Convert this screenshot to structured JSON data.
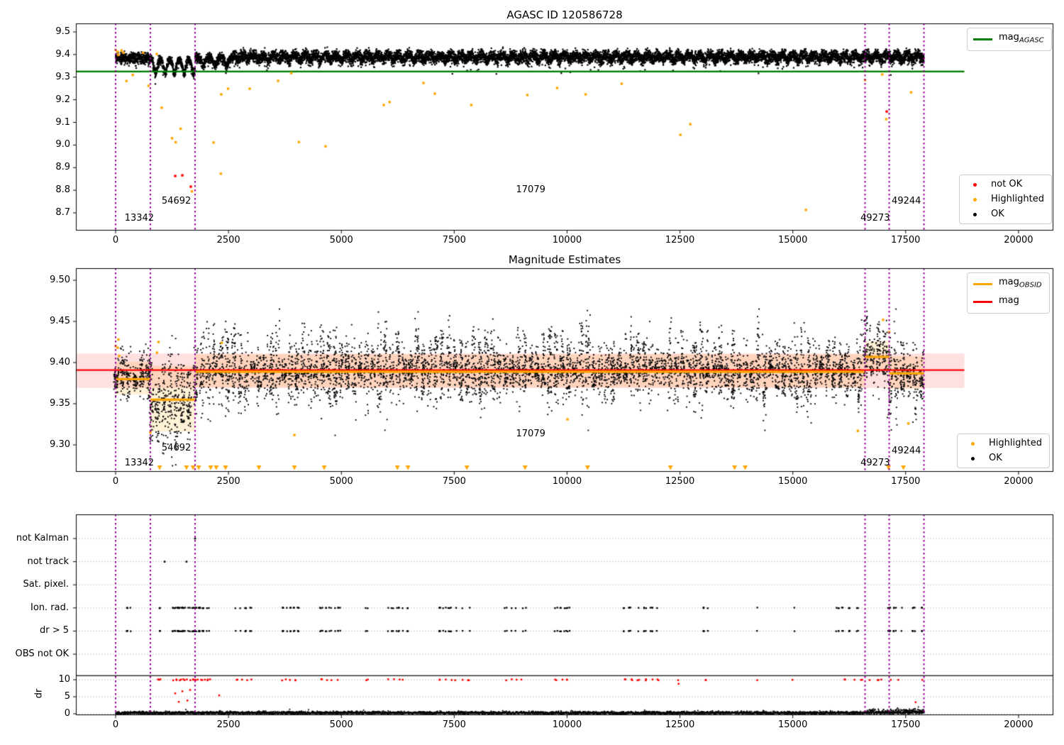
{
  "figure": {
    "background": "#ffffff"
  },
  "colors": {
    "ok": "#000000",
    "highlighted": "#ffa500",
    "not_ok": "#ff0000",
    "mag_agasc": "#008000",
    "mag": "#ff0000",
    "mag_band": "rgba(255,0,0,0.12)",
    "obsid": "#ffa500",
    "obsid_band": "rgba(255,165,0,0.16)",
    "vline": "#990099",
    "grid": "#bbbbbb",
    "axis": "#000000"
  },
  "chart_data": [
    {
      "type": "scatter",
      "title": "AGASC ID 120586728",
      "xlim": [
        -880,
        20790
      ],
      "ylim": [
        8.62,
        9.54
      ],
      "xticks": [
        0,
        2500,
        5000,
        7500,
        10000,
        12500,
        15000,
        17500,
        20000
      ],
      "xtick_labels": [
        "0",
        "2500",
        "5000",
        "7500",
        "10000",
        "12500",
        "15000",
        "17500",
        "20000"
      ],
      "ytick_values": [
        8.7,
        8.8,
        8.9,
        9.0,
        9.1,
        9.2,
        9.3,
        9.4,
        9.5
      ],
      "ytick_labels": [
        "8.7",
        "8.8",
        "8.9",
        "9.0",
        "9.1",
        "9.2",
        "9.3",
        "9.4",
        "9.5"
      ],
      "mag_agasc_value": 9.325,
      "ref_line_xend": 18800,
      "vlines": [
        0,
        770,
        1760,
        16600,
        17135,
        17905
      ],
      "annotations": [
        {
          "text": "13342",
          "x": 200,
          "y": 8.675
        },
        {
          "text": "54692",
          "x": 1020,
          "y": 8.75
        },
        {
          "text": "17079",
          "x": 8870,
          "y": 8.8
        },
        {
          "text": "49273",
          "x": 16500,
          "y": 8.675
        },
        {
          "text": "49244",
          "x": 17190,
          "y": 8.75
        }
      ],
      "ok_model": [
        {
          "x0": 0,
          "x1": 770,
          "mean": 9.385,
          "wave": 0.006,
          "wlen": 160,
          "noise": 0.012
        },
        {
          "x0": 770,
          "x1": 1760,
          "mean": 9.362,
          "wave": 0.045,
          "wlen": 210,
          "noise": 0.01
        },
        {
          "x0": 1760,
          "x1": 2600,
          "mean": 9.378,
          "wave": 0.024,
          "wlen": 260,
          "noise": 0.011
        },
        {
          "x0": 2600,
          "x1": 17905,
          "mean": 9.392,
          "wave": 0.015,
          "wlen": 230,
          "noise": 0.013
        }
      ],
      "highlighted": [
        [
          0,
          9.42
        ],
        [
          47,
          9.412
        ],
        [
          60,
          9.398
        ],
        [
          130,
          9.418
        ],
        [
          175,
          9.408
        ],
        [
          240,
          9.283
        ],
        [
          380,
          9.31
        ],
        [
          610,
          9.408
        ],
        [
          730,
          9.262
        ],
        [
          910,
          9.402
        ],
        [
          1020,
          9.165
        ],
        [
          1250,
          9.03
        ],
        [
          1330,
          9.012
        ],
        [
          1440,
          9.072
        ],
        [
          1690,
          8.795
        ],
        [
          2170,
          9.011
        ],
        [
          2330,
          8.873
        ],
        [
          2340,
          9.224
        ],
        [
          2490,
          9.249
        ],
        [
          2970,
          9.249
        ],
        [
          3600,
          9.284
        ],
        [
          3890,
          9.318
        ],
        [
          4060,
          9.013
        ],
        [
          4650,
          8.994
        ],
        [
          5940,
          9.177
        ],
        [
          6070,
          9.19
        ],
        [
          6820,
          9.274
        ],
        [
          7070,
          9.227
        ],
        [
          7880,
          9.177
        ],
        [
          9120,
          9.221
        ],
        [
          9780,
          9.252
        ],
        [
          10410,
          9.224
        ],
        [
          11210,
          9.271
        ],
        [
          12510,
          9.045
        ],
        [
          12730,
          9.092
        ],
        [
          15290,
          8.713
        ],
        [
          16600,
          9.287
        ],
        [
          16980,
          9.312
        ],
        [
          17070,
          9.114
        ],
        [
          17620,
          9.233
        ]
      ],
      "not_ok": [
        [
          1320,
          8.863
        ],
        [
          1478,
          8.866
        ],
        [
          1666,
          8.816
        ],
        [
          17080,
          9.148
        ]
      ],
      "legend_line": {
        "main": "mag",
        "sub": "AGASC",
        "key": "mag_agasc"
      },
      "legend_points": [
        {
          "label": "not OK",
          "key": "not_ok"
        },
        {
          "label": "Highlighted",
          "key": "highlighted"
        },
        {
          "label": "OK",
          "key": "ok"
        }
      ]
    },
    {
      "type": "scatter",
      "title": "Magnitude Estimates",
      "xlim": [
        -880,
        20790
      ],
      "ylim": [
        9.267,
        9.515
      ],
      "xticks": [
        0,
        2500,
        5000,
        7500,
        10000,
        12500,
        15000,
        17500,
        20000
      ],
      "xtick_labels": [
        "0",
        "2500",
        "5000",
        "7500",
        "10000",
        "12500",
        "15000",
        "17500",
        "20000"
      ],
      "ytick_values": [
        9.3,
        9.35,
        9.4,
        9.45,
        9.5
      ],
      "ytick_labels": [
        "9.30",
        "9.35",
        "9.40",
        "9.45",
        "9.50"
      ],
      "mag_value": 9.39,
      "mag_band": [
        9.369,
        9.411
      ],
      "ref_line_xend": 18800,
      "vlines": [
        0,
        770,
        1760,
        16600,
        17135,
        17905
      ],
      "obsid_segments": [
        {
          "x0": 0,
          "x1": 770,
          "mag": 9.381,
          "band": 0.02
        },
        {
          "x0": 770,
          "x1": 1760,
          "mag": 9.356,
          "band": 0.04
        },
        {
          "x0": 1760,
          "x1": 16600,
          "mag": 9.39,
          "band": 0.02
        },
        {
          "x0": 16600,
          "x1": 17135,
          "mag": 9.408,
          "band": 0.018
        },
        {
          "x0": 17135,
          "x1": 17905,
          "mag": 9.388,
          "band": 0.02
        }
      ],
      "annotations": [
        {
          "text": "13342",
          "x": 200,
          "y": 9.278
        },
        {
          "text": "54692",
          "x": 1020,
          "y": 9.296
        },
        {
          "text": "17079",
          "x": 8870,
          "y": 9.313
        },
        {
          "text": "49273",
          "x": 16500,
          "y": 9.278
        },
        {
          "text": "49244",
          "x": 17190,
          "y": 9.292
        }
      ],
      "ok_model": [
        {
          "x0": 0,
          "x1": 770,
          "mean": 9.381,
          "spread": 0.013,
          "tall": 0.022,
          "dip": 0.0
        },
        {
          "x0": 770,
          "x1": 1760,
          "mean": 9.352,
          "spread": 0.02,
          "tall": 0.03,
          "dip": 0.04
        },
        {
          "x0": 1760,
          "x1": 16600,
          "mean": 9.39,
          "spread": 0.016,
          "tall": 0.048,
          "dip": 0.0
        },
        {
          "x0": 16600,
          "x1": 17135,
          "mean": 9.411,
          "spread": 0.016,
          "tall": 0.046,
          "dip": 0.0
        },
        {
          "x0": 17135,
          "x1": 17905,
          "mean": 9.384,
          "spread": 0.018,
          "tall": 0.03,
          "dip": 0.065
        }
      ],
      "highlighted": [
        [
          0,
          9.42
        ],
        [
          45,
          9.418
        ],
        [
          62,
          9.428
        ],
        [
          80,
          9.408
        ],
        [
          770,
          9.315
        ],
        [
          915,
          9.412
        ],
        [
          950,
          9.425
        ],
        [
          2350,
          9.424
        ],
        [
          3960,
          9.312
        ],
        [
          10010,
          9.331
        ],
        [
          16440,
          9.317
        ],
        [
          17000,
          9.452
        ],
        [
          17135,
          9.437
        ],
        [
          17560,
          9.326
        ]
      ],
      "clipped_low_x": [
        975,
        1570,
        1715,
        1840,
        2105,
        2230,
        2435,
        3175,
        3960,
        4620,
        6240,
        6475,
        7780,
        9070,
        10455,
        12290,
        13710,
        13945,
        17120,
        17450
      ],
      "legend_lines": [
        {
          "main": "mag",
          "sub": "OBSID",
          "key": "obsid"
        },
        {
          "main": "mag",
          "sub": "",
          "key": "mag"
        }
      ],
      "legend_points": [
        {
          "label": "Highlighted",
          "key": "highlighted"
        },
        {
          "label": "OK",
          "key": "ok"
        }
      ]
    },
    {
      "type": "scatter",
      "rows": [
        "not Kalman",
        "not track",
        "Sat. pixel.",
        "Ion. rad.",
        "dr > 5",
        "OBS not OK"
      ],
      "dr_label": "dr",
      "dr_ticks": [
        {
          "v": 0,
          "label": "0"
        },
        {
          "v": 5,
          "label": "5"
        },
        {
          "v": 10,
          "label": "10"
        }
      ],
      "xticks": [
        0,
        2500,
        5000,
        7500,
        10000,
        12500,
        15000,
        17500,
        20000
      ],
      "xtick_labels": [
        "0",
        "2500",
        "5000",
        "7500",
        "10000",
        "12500",
        "15000",
        "17500",
        "20000"
      ],
      "vlines": [
        0,
        770,
        1760,
        16600,
        17135,
        17905
      ],
      "threshold_line_dr": 11.2,
      "flag_points": {
        "not_kalman_x": [
          1760
        ],
        "not_track_x": [
          1085,
          1570
        ],
        "sat_pixel_x": [],
        "obs_not_ok_x": []
      },
      "flag_cluster_x": [
        230,
        320,
        950,
        1000,
        1260,
        1300,
        1340,
        1380,
        1420,
        1460,
        1500,
        1550,
        1600,
        1650,
        1700,
        1760,
        1820,
        1880,
        1950,
        2020,
        2080,
        2670,
        2760,
        2870,
        2990,
        3680,
        3760,
        3860,
        3960,
        4040,
        4560,
        4650,
        4760,
        4870,
        4940,
        5565,
        6040,
        6140,
        6250,
        6360,
        6445,
        7180,
        7280,
        7400,
        7520,
        7650,
        7810,
        8650,
        8760,
        8880,
        9000,
        9070,
        9750,
        9860,
        9980,
        10060,
        11270,
        11400,
        11560,
        11720,
        11880,
        12010,
        13050,
        13130,
        14210,
        15000,
        15990,
        16100,
        16250,
        16410,
        17135,
        17260,
        17450,
        17670,
        17875
      ],
      "dr_red_clipped_x": [
        950,
        1000,
        1290,
        1340,
        1400,
        1460,
        1520,
        1580,
        1650,
        1710,
        1770,
        1830,
        1900,
        1960,
        2030,
        2090,
        2680,
        2780,
        2900,
        3000,
        3690,
        3780,
        3880,
        3990,
        4570,
        4680,
        4800,
        4900,
        5570,
        6050,
        6160,
        6270,
        6380,
        7190,
        7300,
        7420,
        7540,
        7670,
        7820,
        8660,
        8780,
        8900,
        9010,
        9760,
        9880,
        10000,
        11280,
        11420,
        11580,
        11740,
        11900,
        12020,
        12470,
        13060,
        14220,
        15010,
        16140,
        16345,
        16530,
        16690,
        16880,
        16960,
        17165,
        17340,
        17870
      ],
      "dr_red_low": [
        [
          1320,
          6.0
        ],
        [
          1400,
          3.5
        ],
        [
          1478,
          6.6
        ],
        [
          1590,
          3.9
        ],
        [
          1650,
          7.0
        ],
        [
          2295,
          5.4
        ],
        [
          12470,
          8.8
        ],
        [
          17720,
          3.4
        ]
      ],
      "dr_black_band": {
        "x0": 0,
        "x1": 17905,
        "base": 0.45,
        "boost_from": 16600,
        "boost": 2.0
      }
    }
  ]
}
